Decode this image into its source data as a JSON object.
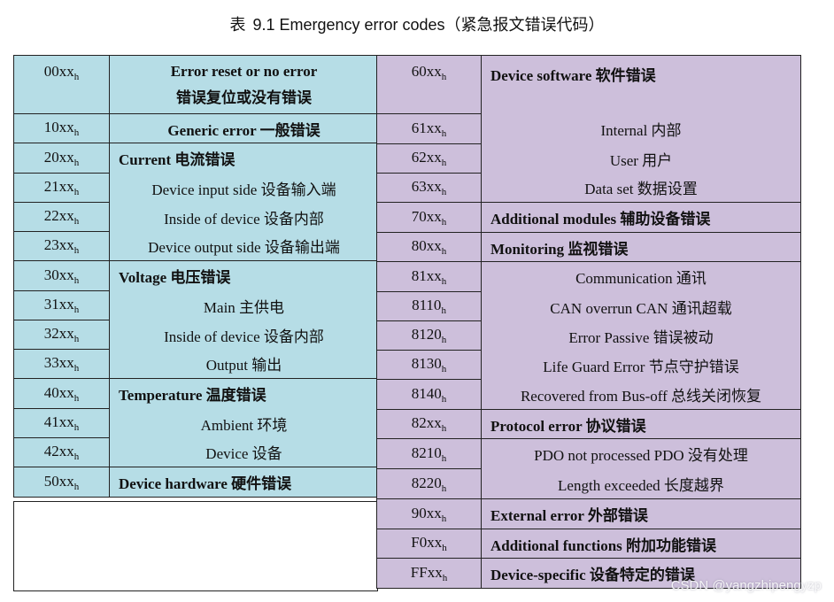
{
  "caption": {
    "table_no": "表",
    "number": "9.1",
    "title": "Emergency error codes（紧急报文错误代码）"
  },
  "left_rows": [
    {
      "code": "00xx",
      "sub": "h",
      "text1": "Error reset or no error",
      "text2": "错误复位或没有错误"
    },
    {
      "code": "10xx",
      "sub": "h",
      "text": "Generic error 一般错误"
    },
    {
      "code": "20xx",
      "sub": "h",
      "text": "Current  电流错误"
    },
    {
      "code": "21xx",
      "sub": "h",
      "text": "Device input side 设备输入端"
    },
    {
      "code": "22xx",
      "sub": "h",
      "text": "Inside of device  设备内部"
    },
    {
      "code": "23xx",
      "sub": "h",
      "text": "Device output side 设备输出端"
    },
    {
      "code": "30xx",
      "sub": "h",
      "text": "Voltage  电压错误"
    },
    {
      "code": "31xx",
      "sub": "h",
      "text": "Main 主供电"
    },
    {
      "code": "32xx",
      "sub": "h",
      "text": "Inside of device 设备内部"
    },
    {
      "code": "33xx",
      "sub": "h",
      "text": "Output 输出"
    },
    {
      "code": "40xx",
      "sub": "h",
      "text": "Temperature  温度错误"
    },
    {
      "code": "41xx",
      "sub": "h",
      "text": "Ambient  环境"
    },
    {
      "code": "42xx",
      "sub": "h",
      "text": "Device 设备"
    },
    {
      "code": "50xx",
      "sub": "h",
      "text": "Device hardware 硬件错误"
    }
  ],
  "right_rows": [
    {
      "code": "60xx",
      "sub": "h",
      "text": "Device software 软件错误"
    },
    {
      "code": "61xx",
      "sub": "h",
      "text": "Internal 内部"
    },
    {
      "code": "62xx",
      "sub": "h",
      "text": "User 用户"
    },
    {
      "code": "63xx",
      "sub": "h",
      "text": "Data set 数据设置"
    },
    {
      "code": "70xx",
      "sub": "h",
      "text": "Additional modules 辅助设备错误"
    },
    {
      "code": "80xx",
      "sub": "h",
      "text": "Monitoring 监视错误"
    },
    {
      "code": "81xx",
      "sub": "h",
      "text": "Communication 通讯"
    },
    {
      "code": "8110",
      "sub": "h",
      "text": "CAN overrun CAN 通讯超载"
    },
    {
      "code": "8120",
      "sub": "h",
      "text": "Error Passive 错误被动"
    },
    {
      "code": "8130",
      "sub": "h",
      "text": "Life Guard Error 节点守护错误"
    },
    {
      "code": "8140",
      "sub": "h",
      "text": "Recovered from Bus-off 总线关闭恢复"
    },
    {
      "code": "82xx",
      "sub": "h",
      "text": "Protocol error 协议错误"
    },
    {
      "code": "8210",
      "sub": "h",
      "text": "PDO not processed PDO 没有处理"
    },
    {
      "code": "8220",
      "sub": "h",
      "text": "Length exceeded 长度越界"
    },
    {
      "code": "90xx",
      "sub": "h",
      "text": "External error 外部错误"
    },
    {
      "code": "F0xx",
      "sub": "h",
      "text": "Additional functions 附加功能错误"
    },
    {
      "code": "FFxx",
      "sub": "h",
      "text": "Device-specific 设备特定的错误"
    }
  ],
  "watermark": "CSDN @yangzhipengyzp"
}
